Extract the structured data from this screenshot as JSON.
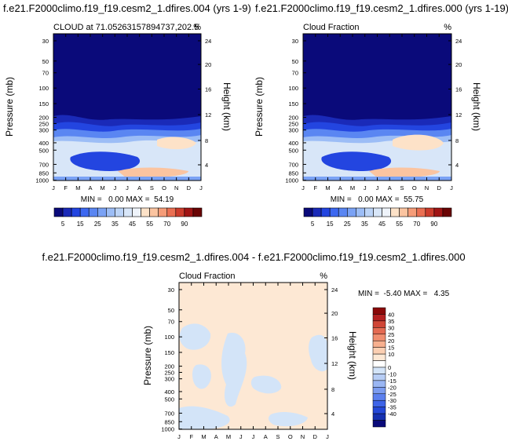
{
  "colors": {
    "cloud_scale": [
      "#0a0a7a",
      "#1a2ab8",
      "#2345e0",
      "#3d68f0",
      "#5a86f2",
      "#7aa2f5",
      "#9cbdf6",
      "#bcd4f7",
      "#d8e6f8",
      "#eef3fa",
      "#fde2c8",
      "#fbc4a0",
      "#f59c78",
      "#ea6f52",
      "#cc3c2c",
      "#a01414",
      "#6a0404"
    ],
    "diff_scale": [
      "#0a0a7a",
      "#1530b0",
      "#2448d8",
      "#3e64e8",
      "#5c80ee",
      "#7c9cf0",
      "#9ab6f3",
      "#b7cdf5",
      "#d3e4f8",
      "#ffffff",
      "#fde8d4",
      "#fbcfb2",
      "#f7b08f",
      "#f08e70",
      "#e46a52",
      "#d04536",
      "#b42020",
      "#8a0808"
    ]
  },
  "chart_data": [
    {
      "type": "heatmap",
      "title": "f.e21.F2000climo.f19_f19.cesm2_1.dfires.004 (yrs 1-9)",
      "left_label": "CLOUD at 71.05263157894737,202.5",
      "right_label": "%",
      "ylabel": "Pressure (mb)",
      "ylabel_right": "Height (km)",
      "x_ticks": [
        "J",
        "F",
        "M",
        "A",
        "M",
        "J",
        "J",
        "A",
        "S",
        "O",
        "N",
        "D",
        "J"
      ],
      "y_ticks": [
        "30",
        "50",
        "70",
        "100",
        "150",
        "200",
        "250",
        "300",
        "400",
        "500",
        "700",
        "850",
        "1000"
      ],
      "height_ticks": [
        "24",
        "20",
        "16",
        "12",
        "8",
        "4"
      ],
      "stats": "MIN =   0.00 MAX =  54.19",
      "colorbar_labels": [
        "5",
        "15",
        "25",
        "35",
        "45",
        "55",
        "70",
        "90"
      ]
    },
    {
      "type": "heatmap",
      "title": "f.e21.F2000climo.f19_f19.cesm2_1.dfires.000 (yrs 1-19)",
      "left_label": "Cloud Fraction",
      "right_label": "%",
      "ylabel": "Pressure (mb)",
      "ylabel_right": "Height (km)",
      "x_ticks": [
        "J",
        "F",
        "M",
        "A",
        "M",
        "J",
        "J",
        "A",
        "S",
        "O",
        "N",
        "D",
        "J"
      ],
      "y_ticks": [
        "30",
        "50",
        "70",
        "100",
        "150",
        "200",
        "250",
        "300",
        "400",
        "500",
        "700",
        "850",
        "1000"
      ],
      "height_ticks": [
        "24",
        "20",
        "16",
        "12",
        "8",
        "4"
      ],
      "stats": "MIN =   0.00 MAX =  55.75",
      "colorbar_labels": [
        "5",
        "15",
        "25",
        "35",
        "45",
        "55",
        "70",
        "90"
      ]
    },
    {
      "type": "heatmap",
      "title": "f.e21.F2000climo.f19_f19.cesm2_1.dfires.004 - f.e21.F2000climo.f19_f19.cesm2_1.dfires.000",
      "left_label": "Cloud Fraction",
      "right_label": "%",
      "ylabel": "Pressure (mb)",
      "ylabel_right": "Height (km)",
      "x_ticks": [
        "J",
        "F",
        "M",
        "A",
        "M",
        "J",
        "J",
        "A",
        "S",
        "O",
        "N",
        "D",
        "J"
      ],
      "y_ticks": [
        "30",
        "50",
        "70",
        "100",
        "150",
        "200",
        "250",
        "300",
        "400",
        "500",
        "700",
        "850",
        "1000"
      ],
      "height_ticks": [
        "24",
        "20",
        "16",
        "12",
        "8",
        "4"
      ],
      "stats": "MIN =  -5.40 MAX =   4.35",
      "colorbar_labels": [
        "40",
        "35",
        "30",
        "25",
        "20",
        "15",
        "10",
        "0",
        "-10",
        "-15",
        "-20",
        "-25",
        "-30",
        "-35",
        "-40"
      ]
    }
  ]
}
